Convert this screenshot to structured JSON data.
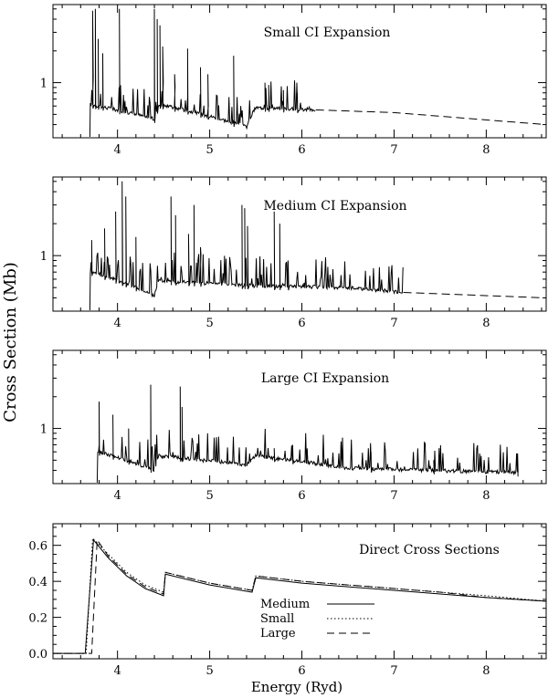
{
  "ylabel": "Cross Section (Mb)",
  "xlabel": "Energy (Ryd)",
  "colors": {
    "line": "#000000",
    "background": "#ffffff"
  },
  "chart_data": [
    {
      "type": "line",
      "title": "Small CI Expansion",
      "xlim": [
        3.3,
        8.65
      ],
      "ylim": [
        0.3,
        5.5
      ],
      "ylog": true,
      "x_ticks": [
        "4",
        "5",
        "6",
        "7",
        "8"
      ],
      "y_ticks": [
        "1"
      ],
      "threshold": 3.7,
      "background": [
        [
          3.72,
          0.62
        ],
        [
          4.4,
          0.45
        ],
        [
          4.45,
          0.62
        ],
        [
          5.4,
          0.38
        ],
        [
          5.5,
          0.58
        ],
        [
          6.2,
          0.55
        ],
        [
          7.0,
          0.52
        ],
        [
          8.65,
          0.4
        ]
      ],
      "resonances": [
        [
          3.73,
          4.8
        ],
        [
          3.76,
          5.0
        ],
        [
          3.79,
          2.6
        ],
        [
          3.84,
          1.9
        ],
        [
          4.02,
          5.0
        ],
        [
          4.4,
          5.0
        ],
        [
          4.43,
          4.0
        ],
        [
          4.46,
          3.5
        ],
        [
          4.49,
          2.2
        ],
        [
          4.62,
          1.2
        ],
        [
          4.76,
          2.1
        ],
        [
          4.9,
          1.4
        ],
        [
          4.98,
          1.2
        ],
        [
          5.26,
          1.8
        ],
        [
          5.6,
          1.0
        ],
        [
          5.64,
          0.95
        ],
        [
          5.8,
          0.85
        ],
        [
          5.95,
          0.8
        ]
      ],
      "dashed_from": 6.15
    },
    {
      "type": "line",
      "title": "Medium CI Expansion",
      "xlim": [
        3.3,
        8.65
      ],
      "ylim": [
        0.3,
        5.5
      ],
      "ylog": true,
      "x_ticks": [
        "4",
        "5",
        "6",
        "7",
        "8"
      ],
      "y_ticks": [
        "1"
      ],
      "threshold": 3.7,
      "background": [
        [
          3.72,
          0.7
        ],
        [
          4.4,
          0.42
        ],
        [
          4.45,
          0.58
        ],
        [
          5.5,
          0.52
        ],
        [
          6.5,
          0.5
        ],
        [
          7.1,
          0.45
        ],
        [
          8.65,
          0.4
        ]
      ],
      "resonances": [
        [
          3.72,
          1.4
        ],
        [
          3.86,
          1.8
        ],
        [
          3.98,
          2.6
        ],
        [
          4.05,
          5.0
        ],
        [
          4.09,
          3.6
        ],
        [
          4.2,
          1.5
        ],
        [
          4.58,
          3.6
        ],
        [
          4.63,
          2.4
        ],
        [
          4.77,
          1.6
        ],
        [
          4.83,
          3.0
        ],
        [
          4.9,
          1.2
        ],
        [
          5.35,
          3.0
        ],
        [
          5.38,
          2.8
        ],
        [
          5.41,
          1.9
        ],
        [
          5.7,
          2.6
        ],
        [
          5.76,
          2.0
        ],
        [
          5.85,
          0.9
        ]
      ],
      "dashed_from": 7.1
    },
    {
      "type": "line",
      "title": "Large CI Expansion",
      "xlim": [
        3.3,
        8.65
      ],
      "ylim": [
        0.3,
        5.5
      ],
      "ylog": true,
      "x_ticks": [
        "4",
        "5",
        "6",
        "7",
        "8"
      ],
      "y_ticks": [
        "1"
      ],
      "threshold": 3.78,
      "background": [
        [
          3.8,
          0.6
        ],
        [
          4.4,
          0.4
        ],
        [
          4.45,
          0.55
        ],
        [
          5.4,
          0.45
        ],
        [
          5.5,
          0.55
        ],
        [
          6.5,
          0.42
        ],
        [
          8.35,
          0.38
        ]
      ],
      "resonances": [
        [
          3.8,
          1.8
        ],
        [
          3.95,
          1.35
        ],
        [
          4.12,
          1.0
        ],
        [
          4.36,
          2.6
        ],
        [
          4.68,
          2.5
        ],
        [
          4.7,
          1.6
        ],
        [
          5.7,
          0.65
        ],
        [
          5.9,
          0.7
        ],
        [
          6.75,
          0.6
        ],
        [
          7.43,
          0.5
        ],
        [
          8.34,
          0.58
        ]
      ],
      "dashed_from": null
    },
    {
      "type": "line",
      "title": "Direct Cross Sections",
      "xlim": [
        3.3,
        8.65
      ],
      "ylim": [
        -0.03,
        0.72
      ],
      "ylog": false,
      "x_ticks": [
        "4",
        "5",
        "6",
        "7",
        "8"
      ],
      "y_ticks": [
        "0.0",
        "0.2",
        "0.4",
        "0.6"
      ],
      "legend": {
        "position": "bottom-center",
        "entries": [
          "Medium",
          "Small",
          "Large"
        ]
      },
      "series": [
        {
          "name": "Medium",
          "dash": "solid",
          "x": [
            3.3,
            3.65,
            3.74,
            3.9,
            4.1,
            4.3,
            4.5,
            4.52,
            5.0,
            5.46,
            5.5,
            6.0,
            6.5,
            7.0,
            7.5,
            8.0,
            8.65
          ],
          "y": [
            0.0,
            0.0,
            0.63,
            0.53,
            0.43,
            0.36,
            0.32,
            0.44,
            0.38,
            0.34,
            0.42,
            0.39,
            0.37,
            0.35,
            0.33,
            0.31,
            0.29
          ]
        },
        {
          "name": "Small",
          "dash": "dotted",
          "x": [
            3.3,
            3.66,
            3.73,
            3.9,
            4.1,
            4.3,
            4.5,
            4.52,
            5.0,
            5.46,
            5.5,
            6.0,
            6.5,
            7.0,
            7.5,
            8.0,
            8.65
          ],
          "y": [
            0.0,
            0.0,
            0.64,
            0.55,
            0.45,
            0.38,
            0.34,
            0.45,
            0.39,
            0.35,
            0.43,
            0.4,
            0.38,
            0.36,
            0.34,
            0.32,
            0.29
          ]
        },
        {
          "name": "Large",
          "dash": "dashed",
          "x": [
            3.3,
            3.72,
            3.78,
            3.9,
            4.1,
            4.3,
            4.5,
            4.52,
            5.0,
            5.46,
            5.5,
            6.0,
            6.5,
            7.0,
            7.5,
            8.0,
            8.65
          ],
          "y": [
            0.0,
            0.0,
            0.63,
            0.54,
            0.44,
            0.37,
            0.33,
            0.45,
            0.39,
            0.35,
            0.43,
            0.4,
            0.38,
            0.36,
            0.34,
            0.31,
            0.29
          ]
        }
      ]
    }
  ]
}
